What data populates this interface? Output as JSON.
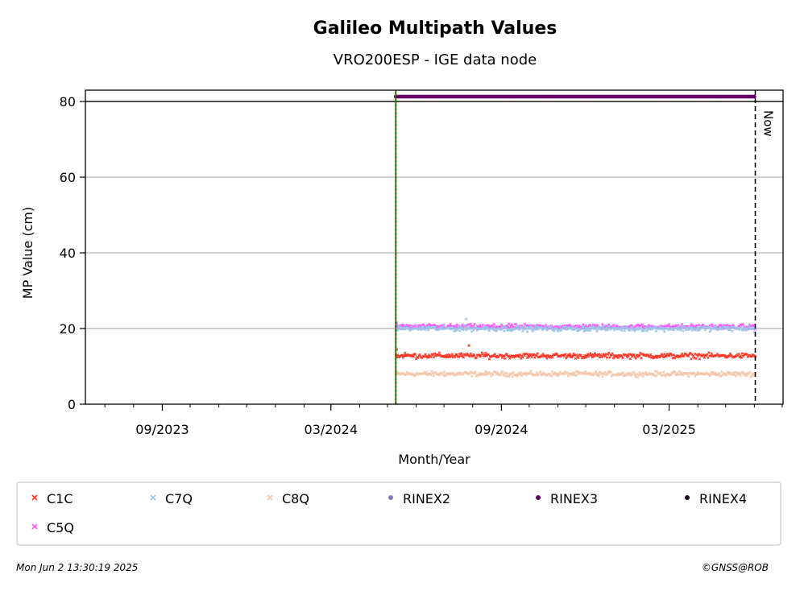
{
  "chart_data": {
    "type": "scatter",
    "title": "Galileo Multipath Values",
    "subtitle": "VRO200ESP - IGE data node",
    "xlabel": "Month/Year",
    "ylabel": "MP Value (cm)",
    "ylim": [
      0,
      83
    ],
    "xlim": [
      "2023-06-10",
      "2025-07-02"
    ],
    "x_ticks": [
      {
        "date": "2023-09-01",
        "label": "09/2023"
      },
      {
        "date": "2024-03-01",
        "label": "03/2024"
      },
      {
        "date": "2024-09-01",
        "label": "09/2024"
      },
      {
        "date": "2025-03-01",
        "label": "03/2025"
      }
    ],
    "y_ticks": [
      0,
      20,
      40,
      60,
      80
    ],
    "grid": "horizontal",
    "reference_line_y": 80,
    "start_marker_date": "2024-05-10",
    "now_marker": {
      "date": "2025-06-02",
      "label": "Now"
    },
    "series": [
      {
        "name": "C1C",
        "marker": "x",
        "color": "#ff3322",
        "start": "2024-05-10",
        "end": "2025-06-02",
        "mean": 12.8,
        "spread": 1.0,
        "values": [
          {
            "x": "2024-05-11",
            "y": 14.5
          },
          {
            "x": "2024-05-20",
            "y": 13.5
          },
          {
            "x": "2024-06-15",
            "y": 13.0
          },
          {
            "x": "2024-07-15",
            "y": 13.0
          },
          {
            "x": "2024-07-28",
            "y": 15.5
          },
          {
            "x": "2024-08-15",
            "y": 13.5
          },
          {
            "x": "2024-10-01",
            "y": 12.5
          },
          {
            "x": "2024-11-15",
            "y": 12.5
          },
          {
            "x": "2025-01-01",
            "y": 12.8
          },
          {
            "x": "2025-03-01",
            "y": 12.8
          },
          {
            "x": "2025-05-01",
            "y": 12.5
          },
          {
            "x": "2025-06-01",
            "y": 12.8
          }
        ]
      },
      {
        "name": "C7Q",
        "marker": "x",
        "color": "#99c4e8",
        "start": "2024-05-10",
        "end": "2025-06-02",
        "mean": 20.0,
        "spread": 1.0,
        "values": [
          {
            "x": "2024-05-11",
            "y": 20.0
          },
          {
            "x": "2024-06-15",
            "y": 20.5
          },
          {
            "x": "2024-07-25",
            "y": 22.5
          },
          {
            "x": "2024-08-15",
            "y": 20.5
          },
          {
            "x": "2024-10-01",
            "y": 20.0
          },
          {
            "x": "2024-12-01",
            "y": 19.5
          },
          {
            "x": "2025-02-01",
            "y": 19.5
          },
          {
            "x": "2025-04-01",
            "y": 19.5
          },
          {
            "x": "2025-06-01",
            "y": 19.0
          }
        ]
      },
      {
        "name": "C8Q",
        "marker": "x",
        "color": "#f5c6a8",
        "start": "2024-05-10",
        "end": "2025-06-02",
        "mean": 8.0,
        "spread": 0.9,
        "values": [
          {
            "x": "2024-05-11",
            "y": 8.0
          },
          {
            "x": "2024-07-01",
            "y": 8.5
          },
          {
            "x": "2024-08-15",
            "y": 8.5
          },
          {
            "x": "2024-10-15",
            "y": 7.8
          },
          {
            "x": "2024-12-15",
            "y": 7.5
          },
          {
            "x": "2025-03-01",
            "y": 7.8
          },
          {
            "x": "2025-06-01",
            "y": 7.5
          }
        ]
      },
      {
        "name": "RINEX2",
        "marker": "o",
        "color": "#8878c0",
        "values": []
      },
      {
        "name": "RINEX3",
        "marker": "o",
        "color": "#660066",
        "start": "2024-05-10",
        "end": "2025-06-01",
        "mean": 81.3,
        "spread": 0.0,
        "values": [
          {
            "x": "2024-05-10",
            "y": 81.3
          },
          {
            "x": "2025-06-01",
            "y": 81.3
          }
        ]
      },
      {
        "name": "RINEX4",
        "marker": "o",
        "color": "#1a001a",
        "values": []
      },
      {
        "name": "C5Q",
        "marker": "x",
        "color": "#ff55ff",
        "start": "2024-05-10",
        "end": "2025-06-02",
        "mean": 20.5,
        "spread": 0.9,
        "values": [
          {
            "x": "2024-05-11",
            "y": 21.5
          },
          {
            "x": "2024-07-01",
            "y": 21.0
          },
          {
            "x": "2024-09-01",
            "y": 21.0
          },
          {
            "x": "2024-11-01",
            "y": 20.5
          },
          {
            "x": "2025-02-01",
            "y": 20.0
          },
          {
            "x": "2025-06-01",
            "y": 20.0
          }
        ]
      }
    ]
  },
  "footer": {
    "timestamp": "Mon Jun  2 13:30:19 2025",
    "credit": "©GNSS@ROB"
  }
}
